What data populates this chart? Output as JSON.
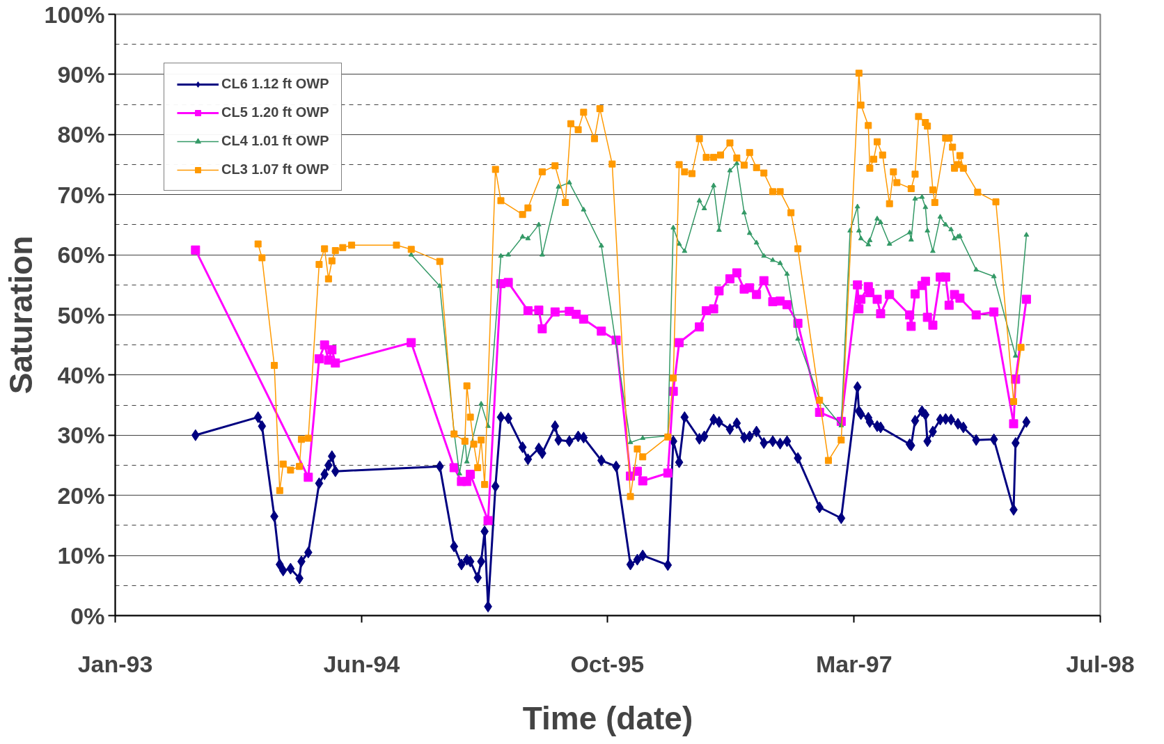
{
  "chart_data": {
    "type": "line",
    "xlabel": "Time (date)",
    "ylabel": "Saturation",
    "xlim": [
      "1993-01-21",
      "1998-07-14"
    ],
    "xticks": [
      {
        "value": "1993-01-21",
        "label": "Jan-93"
      },
      {
        "value": "1994-06-05",
        "label": "Jun-94"
      },
      {
        "value": "1995-10-17",
        "label": "Oct-95"
      },
      {
        "value": "1997-03-01",
        "label": "Mar-97"
      },
      {
        "value": "1998-07-14",
        "label": "Jul-98"
      }
    ],
    "ylim": [
      0,
      100
    ],
    "yticks": [
      {
        "value": 0,
        "label": "0%"
      },
      {
        "value": 10,
        "label": "10%"
      },
      {
        "value": 20,
        "label": "20%"
      },
      {
        "value": 30,
        "label": "30%"
      },
      {
        "value": 40,
        "label": "40%"
      },
      {
        "value": 50,
        "label": "50%"
      },
      {
        "value": 60,
        "label": "60%"
      },
      {
        "value": 70,
        "label": "70%"
      },
      {
        "value": 80,
        "label": "80%"
      },
      {
        "value": 90,
        "label": "90%"
      },
      {
        "value": 100,
        "label": "100%"
      }
    ],
    "grid": "y",
    "legend": "top left",
    "line_style": "solid",
    "series": [
      {
        "name": "CL6 1.12 ft OWP",
        "color": "#000080",
        "marker": "diamond",
        "x": [
          "1993-07-03",
          "1993-11-07",
          "1993-11-15",
          "1993-12-10",
          "1993-12-21",
          "1993-12-28",
          "1994-01-12",
          "1994-01-30",
          "1994-02-03",
          "1994-02-17",
          "1994-03-11",
          "1994-03-22",
          "1994-03-30",
          "1994-04-06",
          "1994-04-13",
          "1994-11-11",
          "1994-12-10",
          "1994-12-25",
          "1995-01-05",
          "1995-01-12",
          "1995-01-27",
          "1995-02-03",
          "1995-02-10",
          "1995-02-17",
          "1995-03-04",
          "1995-03-15",
          "1995-03-30",
          "1995-04-28",
          "1995-05-09",
          "1995-05-31",
          "1995-06-07",
          "1995-07-03",
          "1995-07-10",
          "1995-08-01",
          "1995-08-19",
          "1995-08-30",
          "1995-10-05",
          "1995-11-04",
          "1995-12-03",
          "1995-12-17",
          "1995-12-28",
          "1996-02-17",
          "1996-02-28",
          "1996-03-11",
          "1996-03-22",
          "1996-04-21",
          "1996-05-01",
          "1996-05-20",
          "1996-05-31",
          "1996-06-22",
          "1996-07-06",
          "1996-07-21",
          "1996-08-01",
          "1996-08-15",
          "1996-08-30",
          "1996-09-17",
          "1996-10-02",
          "1996-10-16",
          "1996-11-07",
          "1996-12-21",
          "1997-02-03",
          "1997-03-08",
          "1997-03-11",
          "1997-03-15",
          "1997-03-30",
          "1997-04-02",
          "1997-04-17",
          "1997-04-24",
          "1997-06-22",
          "1997-06-25",
          "1997-07-03",
          "1997-07-17",
          "1997-07-24",
          "1997-07-28",
          "1997-08-08",
          "1997-08-23",
          "1997-09-03",
          "1997-09-14",
          "1997-09-28",
          "1997-10-09",
          "1997-11-04",
          "1997-12-10",
          "1998-01-19",
          "1998-01-23",
          "1998-02-14"
        ],
        "values": [
          30,
          33,
          31.5,
          16.5,
          8.5,
          7.5,
          7.8,
          6.2,
          9,
          10.5,
          22,
          23.5,
          25,
          26.5,
          24,
          24.8,
          11.5,
          8.5,
          9.3,
          9,
          6.3,
          9,
          14,
          1.5,
          21.5,
          33,
          32.8,
          28,
          26,
          27.8,
          27,
          31.5,
          29.2,
          29,
          29.8,
          29.6,
          25.8,
          24.8,
          8.5,
          9.3,
          10,
          8.4,
          29,
          25.5,
          33,
          29.4,
          29.8,
          32.6,
          32.2,
          31,
          32,
          29.6,
          29.8,
          30.6,
          28.7,
          29,
          28.6,
          29,
          26.2,
          18,
          16.2,
          38,
          34,
          33.5,
          32.9,
          32.2,
          31.5,
          31.3,
          28.5,
          28.3,
          32.4,
          34,
          33.4,
          29,
          30.6,
          32.6,
          32.7,
          32.6,
          31.9,
          31.3,
          29.2,
          29.3,
          17.6,
          28.7,
          32.2
        ]
      },
      {
        "name": "CL5 1.20 ft OWP",
        "color": "#ff00ff",
        "marker": "square",
        "x": [
          "1993-07-03",
          "1994-02-17",
          "1994-03-11",
          "1994-03-22",
          "1994-03-30",
          "1994-04-06",
          "1994-04-13",
          "1994-09-14",
          "1994-12-10",
          "1994-12-25",
          "1995-01-05",
          "1995-01-12",
          "1995-02-17",
          "1995-03-15",
          "1995-03-30",
          "1995-05-09",
          "1995-05-31",
          "1995-06-07",
          "1995-07-03",
          "1995-08-01",
          "1995-08-15",
          "1995-08-30",
          "1995-10-05",
          "1995-11-04",
          "1995-12-03",
          "1995-12-17",
          "1995-12-28",
          "1996-02-17",
          "1996-02-28",
          "1996-03-11",
          "1996-04-21",
          "1996-05-05",
          "1996-05-20",
          "1996-05-31",
          "1996-06-22",
          "1996-07-06",
          "1996-07-21",
          "1996-08-01",
          "1996-08-15",
          "1996-08-30",
          "1996-09-17",
          "1996-10-02",
          "1996-10-16",
          "1996-11-07",
          "1996-12-21",
          "1997-02-03",
          "1997-03-08",
          "1997-03-11",
          "1997-03-15",
          "1997-03-30",
          "1997-04-02",
          "1997-04-17",
          "1997-04-24",
          "1997-05-12",
          "1997-06-22",
          "1997-06-25",
          "1997-07-03",
          "1997-07-17",
          "1997-07-24",
          "1997-07-28",
          "1997-08-08",
          "1997-08-23",
          "1997-09-03",
          "1997-09-10",
          "1997-09-21",
          "1997-10-02",
          "1997-11-04",
          "1997-12-10",
          "1998-01-19",
          "1998-01-23",
          "1998-02-14"
        ],
        "values": [
          60.8,
          23,
          42.7,
          45,
          42.5,
          44.2,
          42,
          45.4,
          24.6,
          22.3,
          22.3,
          23.5,
          15.8,
          55.2,
          55.4,
          50.7,
          50.8,
          47.7,
          50.5,
          50.6,
          50.1,
          49.3,
          47.3,
          45.8,
          23.2,
          24,
          22.4,
          23.7,
          37.3,
          45.4,
          48,
          50.7,
          51,
          54,
          56,
          57,
          54.3,
          54.5,
          53.4,
          55.7,
          52.2,
          52.3,
          51.7,
          48.6,
          33.8,
          32.3,
          55,
          51,
          52.6,
          54.7,
          53.7,
          52.6,
          50.2,
          53.4,
          50,
          48.1,
          53.5,
          54.9,
          55.6,
          49.6,
          48.3,
          56.3,
          56.3,
          51.6,
          53.4,
          52.8,
          50,
          50.5,
          31.9,
          39.3,
          52.6
        ]
      },
      {
        "name": "CL4 1.01 ft OWP",
        "color": "#339966",
        "marker": "triangle",
        "x": [
          "1994-09-14",
          "1994-11-11",
          "1994-12-10",
          "1994-12-21",
          "1995-01-01",
          "1995-01-05",
          "1995-02-03",
          "1995-02-17",
          "1995-03-15",
          "1995-03-30",
          "1995-04-28",
          "1995-05-09",
          "1995-05-31",
          "1995-06-07",
          "1995-07-10",
          "1995-08-01",
          "1995-08-30",
          "1995-10-05",
          "1995-12-03",
          "1995-12-28",
          "1996-02-17",
          "1996-02-28",
          "1996-03-11",
          "1996-03-22",
          "1996-04-21",
          "1996-05-01",
          "1996-05-20",
          "1996-05-31",
          "1996-06-22",
          "1996-07-06",
          "1996-07-21",
          "1996-08-01",
          "1996-08-15",
          "1996-08-30",
          "1996-09-17",
          "1996-10-02",
          "1996-10-16",
          "1996-11-07",
          "1996-12-21",
          "1997-02-03",
          "1997-02-21",
          "1997-03-08",
          "1997-03-11",
          "1997-03-15",
          "1997-03-30",
          "1997-04-02",
          "1997-04-17",
          "1997-04-24",
          "1997-05-12",
          "1997-06-22",
          "1997-06-25",
          "1997-07-03",
          "1997-07-17",
          "1997-07-24",
          "1997-07-28",
          "1997-08-08",
          "1997-08-23",
          "1997-09-03",
          "1997-09-14",
          "1997-09-21",
          "1997-09-28",
          "1997-10-02",
          "1997-11-04",
          "1997-12-10",
          "1998-01-23",
          "1998-02-14"
        ],
        "values": [
          60,
          54.8,
          30.5,
          23.6,
          29.3,
          25.6,
          35.2,
          31.5,
          59.8,
          60,
          63,
          62.7,
          65,
          60,
          71.3,
          72,
          67.5,
          61.5,
          28.8,
          29.5,
          29.9,
          64.5,
          61.8,
          60.6,
          69,
          67.7,
          71.5,
          64.1,
          74,
          75.2,
          67,
          63.6,
          62,
          59.8,
          59.1,
          58.6,
          56.8,
          46,
          36,
          31.6,
          64,
          68,
          64,
          62.7,
          61.7,
          62.4,
          66,
          65.4,
          61.8,
          63.7,
          62.5,
          69.3,
          69.6,
          67.9,
          64,
          60.6,
          66.3,
          65,
          64.2,
          62.7,
          63,
          63.1,
          57.5,
          56.4,
          43.2,
          63.3
        ]
      },
      {
        "name": "CL3 1.07 ft OWP",
        "color": "#ff9900",
        "marker": "square",
        "x": [
          "1993-11-07",
          "1993-11-15",
          "1993-12-10",
          "1993-12-21",
          "1993-12-28",
          "1994-01-12",
          "1994-01-30",
          "1994-02-03",
          "1994-02-17",
          "1994-03-11",
          "1994-03-22",
          "1994-03-30",
          "1994-04-06",
          "1994-04-13",
          "1994-04-28",
          "1994-05-16",
          "1994-08-15",
          "1994-09-14",
          "1994-11-11",
          "1994-12-10",
          "1995-01-01",
          "1995-01-05",
          "1995-01-12",
          "1995-01-19",
          "1995-01-27",
          "1995-02-03",
          "1995-02-10",
          "1995-03-04",
          "1995-03-15",
          "1995-04-28",
          "1995-05-09",
          "1995-06-07",
          "1995-07-03",
          "1995-07-24",
          "1995-08-04",
          "1995-08-19",
          "1995-08-30",
          "1995-09-21",
          "1995-10-02",
          "1995-10-27",
          "1995-12-03",
          "1995-12-17",
          "1995-12-28",
          "1996-02-17",
          "1996-02-28",
          "1996-03-11",
          "1996-03-22",
          "1996-04-06",
          "1996-04-21",
          "1996-05-05",
          "1996-05-20",
          "1996-06-03",
          "1996-06-22",
          "1996-07-06",
          "1996-07-21",
          "1996-08-01",
          "1996-08-15",
          "1996-08-30",
          "1996-09-17",
          "1996-10-02",
          "1996-10-24",
          "1996-11-07",
          "1996-12-21",
          "1997-01-08",
          "1997-02-03",
          "1997-03-11",
          "1997-03-15",
          "1997-03-30",
          "1997-04-02",
          "1997-04-10",
          "1997-04-17",
          "1997-04-28",
          "1997-05-12",
          "1997-05-20",
          "1997-05-27",
          "1997-06-25",
          "1997-07-03",
          "1997-07-10",
          "1997-07-24",
          "1997-07-28",
          "1997-08-08",
          "1997-08-12",
          "1997-09-03",
          "1997-09-10",
          "1997-09-17",
          "1997-09-21",
          "1997-09-28",
          "1997-10-02",
          "1997-10-09",
          "1997-11-07",
          "1997-12-14",
          "1998-01-19",
          "1998-02-03"
        ],
        "values": [
          61.8,
          59.5,
          41.6,
          20.8,
          25.2,
          24.2,
          24.8,
          29.3,
          29.5,
          58.4,
          61,
          56,
          59,
          60.7,
          61.2,
          61.6,
          61.6,
          60.9,
          58.9,
          30.2,
          29,
          38.2,
          33,
          28.5,
          24.6,
          29.2,
          21.8,
          74.2,
          69,
          66.7,
          67.8,
          73.8,
          74.8,
          68.7,
          81.8,
          80.8,
          83.7,
          79.3,
          84.3,
          75.1,
          19.8,
          27.7,
          26.4,
          29.7,
          39.5,
          75,
          73.8,
          73.5,
          79.3,
          76.2,
          76.2,
          76.6,
          78.6,
          76.1,
          74.9,
          77,
          74.5,
          73.6,
          70.5,
          70.5,
          67,
          61,
          35.8,
          25.8,
          29.2,
          90.2,
          84.9,
          81.5,
          74.4,
          75.9,
          78.8,
          76.6,
          68.5,
          73.8,
          72,
          71,
          73.4,
          83,
          82,
          81.4,
          70.8,
          68.7,
          79.4,
          79.4,
          77.9,
          74.4,
          75,
          76.5,
          74.4,
          70.4,
          68.8,
          35.6,
          44.6
        ]
      }
    ]
  }
}
